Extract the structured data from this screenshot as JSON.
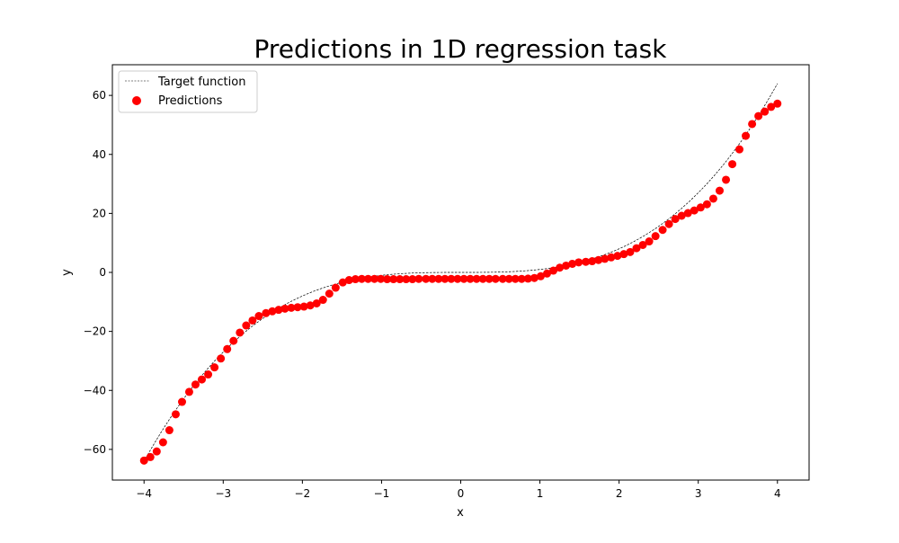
{
  "chart_data": {
    "type": "scatter",
    "title": "Predictions in 1D regression task",
    "xlabel": "x",
    "ylabel": "y",
    "xlim": [
      -4.4,
      4.4
    ],
    "ylim": [
      -70.4,
      70.4
    ],
    "xticks": [
      -4,
      -3,
      -2,
      -1,
      0,
      1,
      2,
      3,
      4
    ],
    "yticks": [
      -60,
      -40,
      -20,
      0,
      20,
      40,
      60
    ],
    "xtick_labels": [
      "−4",
      "−3",
      "−2",
      "−1",
      "0",
      "1",
      "2",
      "3",
      "4"
    ],
    "ytick_labels": [
      "−60",
      "−40",
      "−20",
      "0",
      "20",
      "40",
      "60"
    ],
    "grid": false,
    "legend_position": "top-left",
    "series": [
      {
        "name": "Target function",
        "kind": "line",
        "style": "dashed",
        "color": "#000000",
        "function": "y = x^3",
        "x_range": [
          -4,
          4
        ]
      },
      {
        "name": "Predictions",
        "kind": "scatter",
        "color": "#ff0000",
        "x": [
          -4.0,
          -3.92,
          -3.84,
          -3.76,
          -3.68,
          -3.6,
          -3.52,
          -3.43,
          -3.35,
          -3.27,
          -3.19,
          -3.11,
          -3.03,
          -2.95,
          -2.87,
          -2.79,
          -2.71,
          -2.63,
          -2.55,
          -2.46,
          -2.38,
          -2.3,
          -2.22,
          -2.14,
          -2.06,
          -1.98,
          -1.9,
          -1.82,
          -1.74,
          -1.66,
          -1.58,
          -1.49,
          -1.41,
          -1.33,
          -1.25,
          -1.17,
          -1.09,
          -1.01,
          -0.93,
          -0.85,
          -0.77,
          -0.69,
          -0.61,
          -0.53,
          -0.44,
          -0.36,
          -0.28,
          -0.2,
          -0.12,
          -0.04,
          0.04,
          0.12,
          0.2,
          0.28,
          0.36,
          0.44,
          0.53,
          0.61,
          0.69,
          0.77,
          0.85,
          0.93,
          1.01,
          1.09,
          1.17,
          1.25,
          1.33,
          1.41,
          1.49,
          1.58,
          1.66,
          1.74,
          1.82,
          1.9,
          1.98,
          2.06,
          2.14,
          2.22,
          2.3,
          2.38,
          2.46,
          2.55,
          2.63,
          2.71,
          2.79,
          2.87,
          2.95,
          3.03,
          3.11,
          3.19,
          3.27,
          3.35,
          3.43,
          3.52,
          3.6,
          3.68,
          3.76,
          3.84,
          3.92,
          4.0
        ],
        "y": [
          -63.8,
          -62.6,
          -60.7,
          -57.6,
          -53.5,
          -48.1,
          -43.9,
          -40.5,
          -38.0,
          -36.3,
          -34.6,
          -32.2,
          -29.2,
          -26.0,
          -23.2,
          -20.4,
          -18.0,
          -16.3,
          -14.8,
          -13.8,
          -13.2,
          -12.7,
          -12.3,
          -12.0,
          -11.8,
          -11.6,
          -11.2,
          -10.5,
          -9.3,
          -7.2,
          -5.2,
          -3.4,
          -2.6,
          -2.3,
          -2.2,
          -2.2,
          -2.2,
          -2.2,
          -2.3,
          -2.3,
          -2.3,
          -2.3,
          -2.3,
          -2.2,
          -2.2,
          -2.2,
          -2.2,
          -2.2,
          -2.2,
          -2.2,
          -2.2,
          -2.2,
          -2.2,
          -2.2,
          -2.2,
          -2.2,
          -2.2,
          -2.2,
          -2.2,
          -2.2,
          -2.1,
          -1.9,
          -1.3,
          -0.4,
          0.6,
          1.6,
          2.3,
          2.9,
          3.4,
          3.6,
          3.8,
          4.2,
          4.6,
          5.1,
          5.6,
          6.2,
          6.9,
          8.2,
          9.3,
          10.5,
          12.3,
          14.4,
          16.4,
          18.1,
          19.2,
          20.1,
          21.0,
          22.0,
          23.1,
          25.0,
          27.7,
          31.4,
          36.7,
          41.7,
          46.3,
          50.3,
          53.0,
          54.5,
          56.1,
          57.2
        ]
      }
    ]
  }
}
